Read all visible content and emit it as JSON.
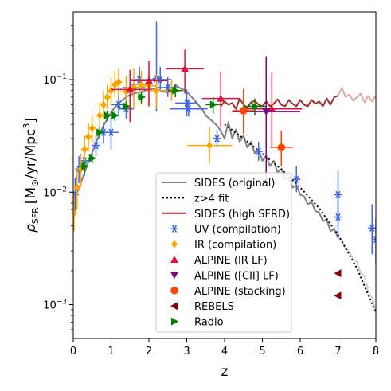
{
  "chart_data": {
    "type": "scatter",
    "title": "",
    "xlabel": "z",
    "ylabel_math": "ρ",
    "ylabel_sub": "SFR",
    "ylabel_unit_prefix": "[M",
    "ylabel_unit_sun": "⊙",
    "ylabel_unit_mid": "/yr/Mpc",
    "ylabel_unit_exp": "3",
    "ylabel_unit_suffix": "]",
    "xlim": [
      0,
      8
    ],
    "ylim": [
      0.0005,
      0.4
    ],
    "yscale": "log",
    "grid": false,
    "legend_position": "lower-center",
    "x_ticks": [
      0,
      1,
      2,
      3,
      4,
      5,
      6,
      7,
      8
    ],
    "y_ticks": [
      {
        "value": 0.001,
        "base": "10",
        "exp": "−3"
      },
      {
        "value": 0.01,
        "base": "10",
        "exp": "−2"
      },
      {
        "value": 0.1,
        "base": "10",
        "exp": "−1"
      }
    ],
    "legend": [
      {
        "label": "SIDES (original)",
        "kind": "line",
        "color": "#808080",
        "dash": "none"
      },
      {
        "label": "z>4 fit",
        "kind": "line",
        "color": "#000000",
        "dash": "dotted"
      },
      {
        "label": "SIDES (high SFRD)",
        "kind": "line",
        "color": "#a52a2a",
        "dash": "none"
      },
      {
        "label": "UV (compilation)",
        "kind": "marker",
        "marker": "asterisk",
        "color": "#4169e1"
      },
      {
        "label": "IR (compilation)",
        "kind": "marker",
        "marker": "diamond",
        "color": "#ffa500"
      },
      {
        "label": "ALPINE (IR LF)",
        "kind": "marker",
        "marker": "triangle-up",
        "color": "#dc143c"
      },
      {
        "label": "ALPINE ([CII] LF)",
        "kind": "marker",
        "marker": "triangle-down",
        "color": "#800080"
      },
      {
        "label": "ALPINE (stacking)",
        "kind": "marker",
        "marker": "octagon",
        "color": "#ff4500"
      },
      {
        "label": "REBELS",
        "kind": "marker",
        "marker": "triangle-left",
        "color": "#8b0000"
      },
      {
        "label": "Radio",
        "kind": "marker",
        "marker": "triangle-right",
        "color": "#008000"
      }
    ],
    "series": [
      {
        "name": "SIDES (original)",
        "kind": "line",
        "color": "#808080",
        "points": [
          [
            0.0,
            0.008
          ],
          [
            0.1,
            0.0098
          ],
          [
            0.2,
            0.012
          ],
          [
            0.3,
            0.015
          ],
          [
            0.4,
            0.0185
          ],
          [
            0.5,
            0.0225
          ],
          [
            0.6,
            0.0275
          ],
          [
            0.7,
            0.033
          ],
          [
            0.8,
            0.039
          ],
          [
            0.9,
            0.045
          ],
          [
            1.0,
            0.051
          ],
          [
            1.1,
            0.057
          ],
          [
            1.2,
            0.062
          ],
          [
            1.3,
            0.066
          ],
          [
            1.4,
            0.07
          ],
          [
            1.5,
            0.073
          ],
          [
            1.6,
            0.075
          ],
          [
            1.7,
            0.077
          ],
          [
            1.8,
            0.078
          ],
          [
            1.9,
            0.08
          ],
          [
            2.0,
            0.082
          ],
          [
            2.1,
            0.083
          ],
          [
            2.2,
            0.082
          ],
          [
            2.3,
            0.08
          ],
          [
            2.4,
            0.078
          ],
          [
            2.5,
            0.077
          ],
          [
            2.6,
            0.08
          ],
          [
            2.7,
            0.09
          ],
          [
            2.8,
            0.085
          ],
          [
            2.9,
            0.082
          ],
          [
            3.0,
            0.078
          ],
          [
            3.1,
            0.072
          ],
          [
            3.2,
            0.066
          ],
          [
            3.3,
            0.06
          ],
          [
            3.4,
            0.055
          ],
          [
            3.5,
            0.048
          ],
          [
            3.6,
            0.045
          ],
          [
            3.7,
            0.042
          ],
          [
            3.8,
            0.039
          ],
          [
            3.9,
            0.035
          ],
          [
            4.0,
            0.03
          ],
          [
            4.1,
            0.042
          ],
          [
            4.2,
            0.03
          ],
          [
            4.3,
            0.036
          ],
          [
            4.4,
            0.028
          ],
          [
            4.5,
            0.032
          ],
          [
            4.6,
            0.025
          ],
          [
            4.7,
            0.028
          ],
          [
            4.8,
            0.022
          ],
          [
            4.9,
            0.024
          ],
          [
            5.0,
            0.019
          ],
          [
            5.1,
            0.021
          ],
          [
            5.2,
            0.017
          ],
          [
            5.3,
            0.019
          ],
          [
            5.4,
            0.015
          ],
          [
            5.5,
            0.016
          ],
          [
            5.6,
            0.013
          ],
          [
            5.7,
            0.0135
          ],
          [
            5.8,
            0.011
          ],
          [
            5.9,
            0.0115
          ],
          [
            6.0,
            0.0095
          ],
          [
            6.1,
            0.0092
          ],
          [
            6.2,
            0.0078
          ],
          [
            6.3,
            0.0082
          ],
          [
            6.4,
            0.0068
          ],
          [
            6.5,
            0.0066
          ],
          [
            6.6,
            0.0055
          ],
          [
            6.7,
            0.0057
          ],
          [
            6.8,
            0.0045
          ],
          [
            6.9,
            0.0047
          ],
          [
            7.0,
            0.0039
          ]
        ]
      },
      {
        "name": "SIDES (original) faded",
        "kind": "line",
        "color": "#cfcfcf",
        "points": [
          [
            7.0,
            0.0039
          ],
          [
            7.1,
            0.0037
          ],
          [
            7.2,
            0.0031
          ],
          [
            7.3,
            0.003
          ],
          [
            7.4,
            0.0025
          ],
          [
            7.5,
            0.0024
          ],
          [
            7.6,
            0.0019
          ],
          [
            7.7,
            0.0018
          ],
          [
            7.8,
            0.0013
          ],
          [
            7.9,
            0.00115
          ],
          [
            8.0,
            0.00085
          ]
        ]
      },
      {
        "name": "z>4 fit",
        "kind": "line",
        "color": "#000000",
        "dash": "dotted",
        "points": [
          [
            4.0,
            0.04
          ],
          [
            4.5,
            0.03
          ],
          [
            5.0,
            0.022
          ],
          [
            5.5,
            0.016
          ],
          [
            6.0,
            0.011
          ],
          [
            6.5,
            0.0072
          ],
          [
            7.0,
            0.0042
          ],
          [
            7.5,
            0.0021
          ],
          [
            8.0,
            0.00085
          ]
        ]
      },
      {
        "name": "SIDES (high SFRD)",
        "kind": "line",
        "color": "#a52a2a",
        "points": [
          [
            3.9,
            0.058
          ],
          [
            4.0,
            0.064
          ],
          [
            4.1,
            0.06
          ],
          [
            4.2,
            0.062
          ],
          [
            4.3,
            0.055
          ],
          [
            4.4,
            0.068
          ],
          [
            4.5,
            0.06
          ],
          [
            4.6,
            0.056
          ],
          [
            4.7,
            0.063
          ],
          [
            4.8,
            0.065
          ],
          [
            4.9,
            0.06
          ],
          [
            5.0,
            0.058
          ],
          [
            5.1,
            0.064
          ],
          [
            5.2,
            0.058
          ],
          [
            5.3,
            0.061
          ],
          [
            5.4,
            0.067
          ],
          [
            5.5,
            0.06
          ],
          [
            5.6,
            0.058
          ],
          [
            5.7,
            0.066
          ],
          [
            5.8,
            0.061
          ],
          [
            5.9,
            0.058
          ],
          [
            6.0,
            0.066
          ],
          [
            6.1,
            0.06
          ],
          [
            6.2,
            0.058
          ],
          [
            6.3,
            0.066
          ],
          [
            6.4,
            0.061
          ],
          [
            6.5,
            0.064
          ],
          [
            6.6,
            0.058
          ],
          [
            6.7,
            0.068
          ],
          [
            6.8,
            0.06
          ],
          [
            6.9,
            0.07
          ],
          [
            7.0,
            0.072
          ]
        ]
      },
      {
        "name": "SIDES (high SFRD) faded",
        "kind": "line",
        "color": "#e2a8a8",
        "points": [
          [
            7.0,
            0.072
          ],
          [
            7.1,
            0.085
          ],
          [
            7.2,
            0.07
          ],
          [
            7.3,
            0.074
          ],
          [
            7.4,
            0.065
          ],
          [
            7.5,
            0.07
          ],
          [
            7.6,
            0.075
          ],
          [
            7.7,
            0.063
          ],
          [
            7.8,
            0.072
          ],
          [
            7.9,
            0.064
          ],
          [
            8.0,
            0.072
          ]
        ]
      },
      {
        "name": "UV (compilation)",
        "kind": "points",
        "marker": "asterisk",
        "color": "#4169e1",
        "points": [
          [
            0.05,
            0.0095,
            0.003,
            0.004,
            0.05
          ],
          [
            0.15,
            0.016,
            0.004,
            0.005,
            0.05
          ],
          [
            0.3,
            0.019,
            0.005,
            0.006,
            0.1
          ],
          [
            0.6,
            0.026,
            0.005,
            0.006,
            0.1
          ],
          [
            0.8,
            0.034,
            0.007,
            0.008,
            0.1
          ],
          [
            1.0,
            0.034,
            0.01,
            0.012,
            0.2
          ],
          [
            1.2,
            0.06,
            0.012,
            0.015,
            0.2
          ],
          [
            1.4,
            0.055,
            0.01,
            0.012,
            0.2
          ],
          [
            1.6,
            0.085,
            0.015,
            0.02,
            0.3
          ],
          [
            1.75,
            0.1,
            0.02,
            0.03,
            0.25
          ],
          [
            2.2,
            0.102,
            0.05,
            0.23,
            0.1
          ],
          [
            2.3,
            0.1,
            0.02,
            0.03,
            0.3
          ],
          [
            2.5,
            0.085,
            0.015,
            0.02,
            0.3
          ],
          [
            3.0,
            0.062,
            0.015,
            0.02,
            0.3
          ],
          [
            3.05,
            0.055,
            0.008,
            0.012,
            0.5
          ],
          [
            3.8,
            0.03,
            0.005,
            0.006,
            0.1
          ],
          [
            4.9,
            0.023,
            0.004,
            0.005,
            0.1
          ],
          [
            5.9,
            0.013,
            0.003,
            0.004,
            0.1
          ],
          [
            7.0,
            0.0095,
            0.004,
            0.006,
            0.1
          ],
          [
            7.0,
            0.006,
            0.002,
            0.003,
            0.1
          ],
          [
            7.9,
            0.0048,
            0.002,
            0.003,
            0.1
          ],
          [
            8.0,
            0.0038,
            0.0015,
            0.002,
            0.1
          ]
        ]
      },
      {
        "name": "IR (compilation)",
        "kind": "points",
        "marker": "diamond",
        "color": "#ffa500",
        "points": [
          [
            0.02,
            0.0065,
            0.002,
            0.003,
            0.02
          ],
          [
            0.1,
            0.011,
            0.004,
            0.005,
            0.05
          ],
          [
            0.2,
            0.016,
            0.005,
            0.006,
            0.05
          ],
          [
            0.3,
            0.024,
            0.007,
            0.008,
            0.1
          ],
          [
            0.4,
            0.031,
            0.008,
            0.01,
            0.1
          ],
          [
            0.5,
            0.037,
            0.01,
            0.012,
            0.1
          ],
          [
            0.7,
            0.048,
            0.012,
            0.015,
            0.1
          ],
          [
            0.8,
            0.06,
            0.015,
            0.02,
            0.1
          ],
          [
            0.9,
            0.07,
            0.015,
            0.02,
            0.1
          ],
          [
            1.0,
            0.08,
            0.02,
            0.025,
            0.1
          ],
          [
            1.1,
            0.09,
            0.02,
            0.03,
            0.1
          ],
          [
            1.2,
            0.095,
            0.025,
            0.03,
            0.1
          ],
          [
            1.4,
            0.078,
            0.02,
            0.03,
            0.2
          ],
          [
            1.5,
            0.082,
            0.02,
            0.03,
            0.2
          ],
          [
            1.6,
            0.085,
            0.03,
            0.04,
            0.2
          ],
          [
            1.8,
            0.09,
            0.03,
            0.03,
            0.2
          ],
          [
            2.0,
            0.088,
            0.03,
            0.03,
            0.2
          ],
          [
            2.2,
            0.08,
            0.025,
            0.03,
            0.2
          ],
          [
            2.6,
            0.08,
            0.015,
            0.02,
            0.2
          ],
          [
            3.6,
            0.026,
            0.008,
            0.012,
            0.6
          ]
        ]
      },
      {
        "name": "ALPINE (IR LF)",
        "kind": "points",
        "marker": "triangle-up",
        "color": "#dc143c",
        "points": [
          [
            1.5,
            0.082,
            0.04,
            0.04,
            0.5
          ],
          [
            2.0,
            0.098,
            0.04,
            0.05,
            0.5
          ],
          [
            2.95,
            0.125,
            0.05,
            0.06,
            0.5
          ],
          [
            3.9,
            0.068,
            0.03,
            0.05,
            0.5
          ],
          [
            5.25,
            0.055,
            0.03,
            0.06,
            0.8
          ]
        ]
      },
      {
        "name": "ALPINE ([CII] LF)",
        "kind": "points",
        "marker": "triangle-down",
        "color": "#800080",
        "points": [
          [
            5.1,
            0.052,
            0.04,
            0.11,
            0.9
          ]
        ]
      },
      {
        "name": "ALPINE (stacking)",
        "kind": "points",
        "marker": "octagon",
        "color": "#ff4500",
        "points": [
          [
            4.5,
            0.053,
            0.02,
            0.03,
            0.3
          ],
          [
            5.5,
            0.025,
            0.008,
            0.01,
            0.3
          ]
        ]
      },
      {
        "name": "REBELS",
        "kind": "points",
        "marker": "triangle-left",
        "color": "#8b0000",
        "points": [
          [
            7.0,
            0.0019,
            0,
            0,
            0
          ],
          [
            7.0,
            0.0012,
            0,
            0,
            0
          ]
        ]
      },
      {
        "name": "Radio",
        "kind": "points",
        "marker": "triangle-right",
        "color": "#008000",
        "points": [
          [
            0.3,
            0.017,
            0.002,
            0.002,
            0.1
          ],
          [
            0.5,
            0.02,
            0.002,
            0.002,
            0.1
          ],
          [
            0.7,
            0.034,
            0.004,
            0.004,
            0.1
          ],
          [
            0.9,
            0.048,
            0.005,
            0.005,
            0.1
          ],
          [
            1.1,
            0.048,
            0.005,
            0.005,
            0.1
          ],
          [
            1.4,
            0.058,
            0.006,
            0.006,
            0.1
          ],
          [
            1.8,
            0.07,
            0.008,
            0.008,
            0.1
          ],
          [
            2.7,
            0.08,
            0.01,
            0.01,
            0.2
          ],
          [
            3.7,
            0.06,
            0.01,
            0.01,
            0.2
          ],
          [
            4.8,
            0.058,
            0.01,
            0.01,
            0.3
          ]
        ]
      }
    ]
  }
}
